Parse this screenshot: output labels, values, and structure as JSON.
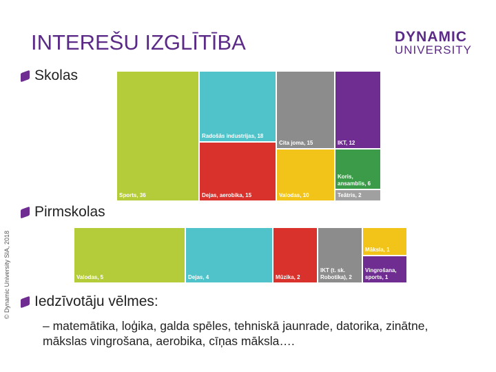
{
  "slide": {
    "title": "INTEREŠU IZGLĪTĪBA",
    "logo": [
      "DYNAMIC",
      "UNIVERSITY"
    ],
    "copyright": "© Dynamic University SIA, 2018",
    "bullet": "Iedzīvotāju vēlmes:",
    "sub_bullet": "– matemātika, loģika, galda spēles, tehniskā jaunrade, datorika, zinātne, mākslas vingrošana, aerobika, cīņas māksla…."
  },
  "chart_data": [
    {
      "type": "treemap",
      "title": "Skolas",
      "values": [
        36,
        18,
        15,
        15,
        10,
        12,
        6,
        2
      ],
      "value_labels": [
        "Sports, 36",
        "Radošās industrijas, 18",
        "Dejas, aerobika, 15",
        "Cita joma, 15",
        "Valodas, 10",
        "IKT, 12",
        "Koris, ansamblis, 6",
        "Teātris, 2"
      ],
      "colors": [
        "#b5cc3a",
        "#4fc3c9",
        "#d9312b",
        "#8c8c8c",
        "#f2c318",
        "#6f2c91",
        "#3b9b48",
        "#a0a0a0"
      ]
    },
    {
      "type": "treemap",
      "title": "Pirmskolas",
      "values": [
        5,
        4,
        2,
        2,
        1,
        1
      ],
      "value_labels": [
        "Valodas, 5",
        "Dejas, 4",
        "Mūzika, 2",
        "IKT (t. sk. Robotika), 2",
        "Māksla, 1",
        "Vingrošana, sports, 1"
      ],
      "colors": [
        "#b5cc3a",
        "#4fc3c9",
        "#d9312b",
        "#8c8c8c",
        "#f2c318",
        "#6f2c91"
      ]
    }
  ]
}
